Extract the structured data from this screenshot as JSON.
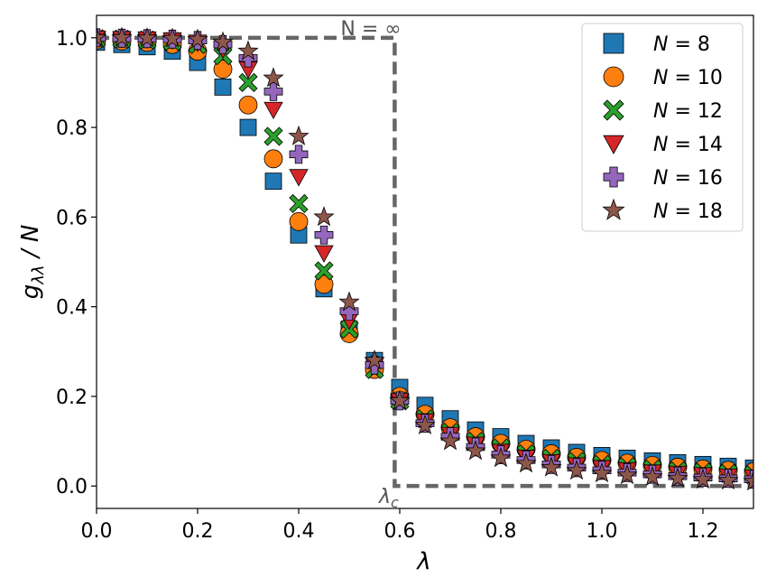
{
  "chart_data": {
    "type": "scatter",
    "xlabel": "λ",
    "ylabel_main": "g",
    "ylabel_sub": "λλ",
    "ylabel_tail": " / N",
    "xlim": [
      0.0,
      1.3
    ],
    "ylim": [
      -0.05,
      1.05
    ],
    "x_ticks": [
      0.0,
      0.2,
      0.4,
      0.6,
      0.8,
      1.0,
      1.2
    ],
    "y_ticks": [
      0.0,
      0.2,
      0.4,
      0.6,
      0.8,
      1.0
    ],
    "x_tick_labels": [
      "0.0",
      "0.2",
      "0.4",
      "0.6",
      "0.8",
      "1.0",
      "1.2"
    ],
    "y_tick_labels": [
      "0.0",
      "0.2",
      "0.4",
      "0.6",
      "0.8",
      "1.0"
    ],
    "grid": false,
    "legend_position": "top-right",
    "x": [
      0.0,
      0.05,
      0.1,
      0.15,
      0.2,
      0.25,
      0.3,
      0.35,
      0.4,
      0.45,
      0.5,
      0.55,
      0.6,
      0.65,
      0.7,
      0.75,
      0.8,
      0.85,
      0.9,
      0.95,
      1.0,
      1.05,
      1.1,
      1.15,
      1.2,
      1.25,
      1.3
    ],
    "series": [
      {
        "name": "N = 8",
        "label_italic": "N",
        "label_rest": " = 8",
        "marker": "square",
        "color": "#1f77b4",
        "values": [
          0.99,
          0.985,
          0.98,
          0.97,
          0.945,
          0.89,
          0.8,
          0.68,
          0.56,
          0.44,
          0.35,
          0.28,
          0.22,
          0.18,
          0.15,
          0.125,
          0.11,
          0.095,
          0.085,
          0.075,
          0.068,
          0.062,
          0.056,
          0.052,
          0.048,
          0.044,
          0.04
        ]
      },
      {
        "name": "N = 10",
        "label_italic": "N",
        "label_rest": " = 10",
        "marker": "circle",
        "color": "#ff7f0e",
        "values": [
          0.995,
          0.993,
          0.99,
          0.985,
          0.97,
          0.93,
          0.85,
          0.73,
          0.59,
          0.45,
          0.34,
          0.26,
          0.2,
          0.16,
          0.13,
          0.11,
          0.095,
          0.082,
          0.072,
          0.064,
          0.057,
          0.051,
          0.046,
          0.042,
          0.038,
          0.035,
          0.032
        ]
      },
      {
        "name": "N = 12",
        "label_italic": "N",
        "label_rest": " = 12",
        "marker": "x",
        "color": "#2ca02c",
        "values": [
          0.998,
          0.997,
          0.995,
          0.992,
          0.985,
          0.96,
          0.9,
          0.78,
          0.63,
          0.48,
          0.35,
          0.26,
          0.19,
          0.15,
          0.12,
          0.1,
          0.085,
          0.072,
          0.062,
          0.055,
          0.048,
          0.043,
          0.038,
          0.034,
          0.031,
          0.028,
          0.025
        ]
      },
      {
        "name": "N = 14",
        "label_italic": "N",
        "label_rest": " = 14",
        "marker": "triangle-down",
        "color": "#d62728",
        "values": [
          0.999,
          0.998,
          0.997,
          0.995,
          0.99,
          0.975,
          0.93,
          0.84,
          0.69,
          0.52,
          0.37,
          0.27,
          0.19,
          0.145,
          0.115,
          0.093,
          0.077,
          0.064,
          0.054,
          0.047,
          0.041,
          0.036,
          0.031,
          0.028,
          0.025,
          0.022,
          0.02
        ]
      },
      {
        "name": "N = 16",
        "label_italic": "N",
        "label_rest": " = 16",
        "marker": "plus",
        "color": "#9467bd",
        "values": [
          1.0,
          0.999,
          0.998,
          0.997,
          0.994,
          0.985,
          0.955,
          0.88,
          0.74,
          0.56,
          0.39,
          0.27,
          0.19,
          0.14,
          0.11,
          0.087,
          0.07,
          0.058,
          0.048,
          0.041,
          0.035,
          0.03,
          0.026,
          0.022,
          0.019,
          0.017,
          0.015
        ]
      },
      {
        "name": "N = 18",
        "label_italic": "N",
        "label_rest": " = 18",
        "marker": "star",
        "color": "#8c564b",
        "values": [
          1.0,
          1.0,
          0.999,
          0.998,
          0.996,
          0.99,
          0.97,
          0.91,
          0.78,
          0.6,
          0.41,
          0.28,
          0.19,
          0.135,
          0.1,
          0.078,
          0.062,
          0.05,
          0.041,
          0.034,
          0.028,
          0.024,
          0.02,
          0.017,
          0.014,
          0.012,
          0.01
        ]
      }
    ],
    "step_curve": {
      "lambda_c": 0.59,
      "upper": 1.0,
      "lower": 0.0,
      "x_start": 0.0,
      "x_end": 1.3,
      "color": "#666666"
    },
    "annotations": {
      "n_inf": "N = ∞",
      "lambda_c_main": "λ",
      "lambda_c_sub": "c"
    }
  }
}
